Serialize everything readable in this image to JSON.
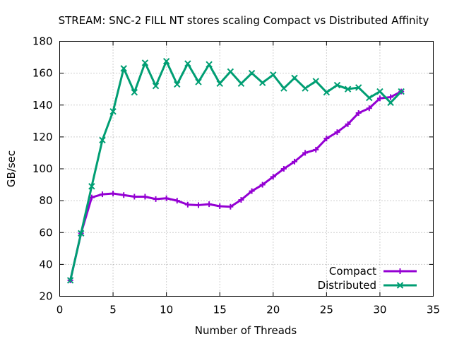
{
  "chart_data": {
    "type": "line",
    "title": "STREAM: SNC-2 FILL NT stores scaling Compact vs Distributed Affinity",
    "xlabel": "Number of Threads",
    "ylabel": "GB/sec",
    "xlim": [
      0,
      35
    ],
    "ylim": [
      20,
      180
    ],
    "xticks": [
      0,
      5,
      10,
      15,
      20,
      25,
      30,
      35
    ],
    "yticks": [
      20,
      40,
      60,
      80,
      100,
      120,
      140,
      160,
      180
    ],
    "grid": true,
    "legend_position": "bottom-right",
    "x": [
      1,
      2,
      3,
      4,
      5,
      6,
      7,
      8,
      9,
      10,
      11,
      12,
      13,
      14,
      15,
      16,
      17,
      18,
      19,
      20,
      21,
      22,
      23,
      24,
      25,
      26,
      27,
      28,
      29,
      30,
      31,
      32
    ],
    "series": [
      {
        "name": "Compact",
        "color": "#9400d3",
        "marker": "plus",
        "values": [
          30,
          59.5,
          82,
          84,
          84.5,
          83.5,
          82.5,
          82.5,
          81,
          81.5,
          80,
          77.5,
          77.2,
          77.8,
          76.5,
          76.2,
          80.5,
          86,
          90,
          95,
          100,
          104.5,
          110,
          112,
          119,
          123,
          128,
          135,
          138,
          144.2,
          145,
          148.5
        ]
      },
      {
        "name": "Distributed",
        "color": "#009e73",
        "marker": "cross",
        "values": [
          30,
          59.5,
          89,
          118,
          136,
          163,
          148,
          166.5,
          152,
          167.5,
          153,
          166,
          154.5,
          165.5,
          153.5,
          161,
          153.5,
          160,
          154,
          159,
          150.5,
          157,
          150.5,
          155,
          148,
          152.5,
          150,
          151,
          144.5,
          148.5,
          141.5,
          148.5
        ]
      }
    ]
  }
}
